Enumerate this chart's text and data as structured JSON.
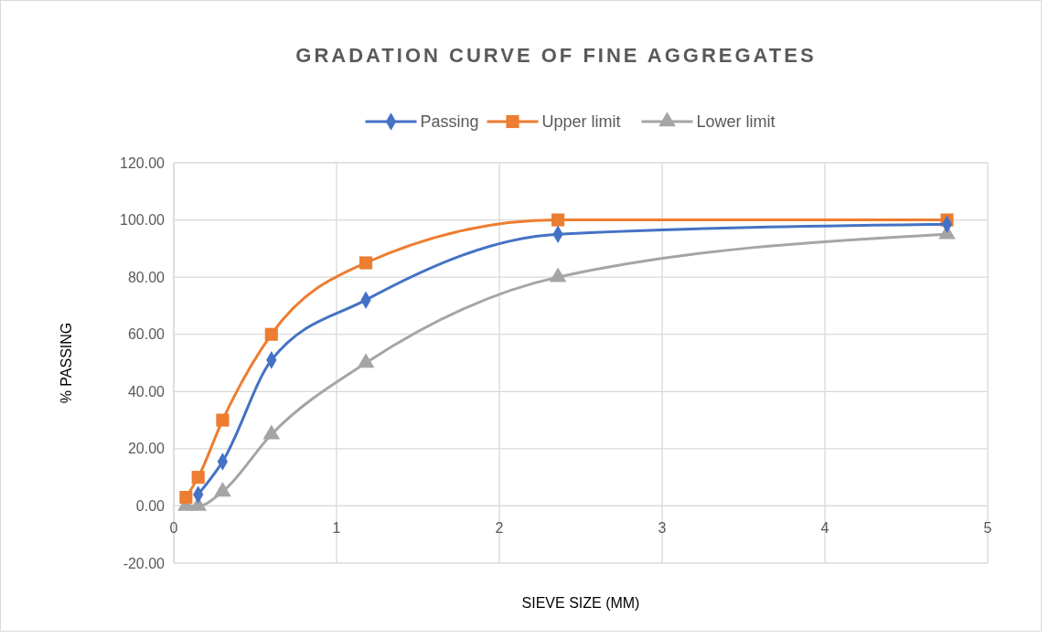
{
  "chart_data": {
    "type": "line",
    "title": "GRADATION CURVE OF FINE AGGREGATES",
    "xlabel": "SIEVE SIZE (MM)",
    "ylabel": "% PASSING",
    "xlim": [
      0,
      5
    ],
    "xticks": [
      0,
      1,
      2,
      3,
      4,
      5
    ],
    "ylim": [
      -20,
      120
    ],
    "yticks": [
      {
        "value": -20,
        "label": "-20.00"
      },
      {
        "value": 0,
        "label": "0.00"
      },
      {
        "value": 20,
        "label": "20.00"
      },
      {
        "value": 40,
        "label": "40.00"
      },
      {
        "value": 60,
        "label": "60.00"
      },
      {
        "value": 80,
        "label": "80.00"
      },
      {
        "value": 100,
        "label": "100.00"
      },
      {
        "value": 120,
        "label": "120.00"
      }
    ],
    "grid": true,
    "legend": "top",
    "line_style": "solid",
    "series": [
      {
        "name": "Passing",
        "color": "#4472c4",
        "marker": "diamond",
        "x": [
          0.15,
          0.3,
          0.6,
          1.18,
          2.36,
          4.75
        ],
        "values": [
          4,
          15.5,
          51,
          72,
          95,
          98.5
        ]
      },
      {
        "name": "Upper limit",
        "color": "#ed7d31",
        "marker": "square",
        "x": [
          0.075,
          0.15,
          0.3,
          0.6,
          1.18,
          2.36,
          4.75
        ],
        "values": [
          3,
          10,
          30,
          60,
          85,
          100,
          100
        ]
      },
      {
        "name": "Lower limit",
        "color": "#a5a5a5",
        "marker": "triangle",
        "x": [
          0.075,
          0.15,
          0.3,
          0.6,
          1.18,
          2.36,
          4.75
        ],
        "values": [
          0,
          0,
          5,
          25,
          50,
          80,
          95
        ]
      }
    ]
  }
}
